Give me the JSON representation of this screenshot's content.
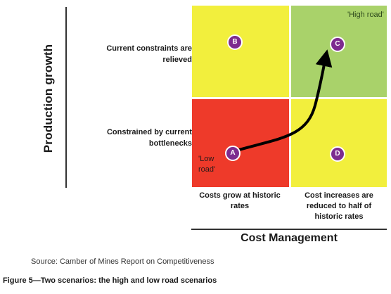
{
  "diagram": {
    "y_axis_title": "Production growth",
    "x_axis_title": "Cost Management",
    "rows": {
      "top": "Current constraints are relieved",
      "bottom": "Constrained by current bottlenecks"
    },
    "columns": {
      "left": "Costs grow at historic rates",
      "right": "Cost increases are reduced to half of historic rates"
    },
    "quadrants": {
      "top_left": {
        "badge": "B",
        "color": "#f2ef3d"
      },
      "top_right": {
        "badge": "C",
        "color": "#a9d26a",
        "note": "'High road'"
      },
      "bottom_left": {
        "badge": "A",
        "color": "#ee3a2a",
        "note": "'Low road'"
      },
      "bottom_right": {
        "badge": "D",
        "color": "#f2ef3d"
      }
    },
    "badge_color": "#7d2b8f",
    "arrow": {
      "from": "A",
      "to": "C",
      "color": "#000000"
    }
  },
  "source": "Source: Camber of Mines Report on Competitiveness",
  "caption": "Figure 5—Two scenarios: the high and low road scenarios"
}
